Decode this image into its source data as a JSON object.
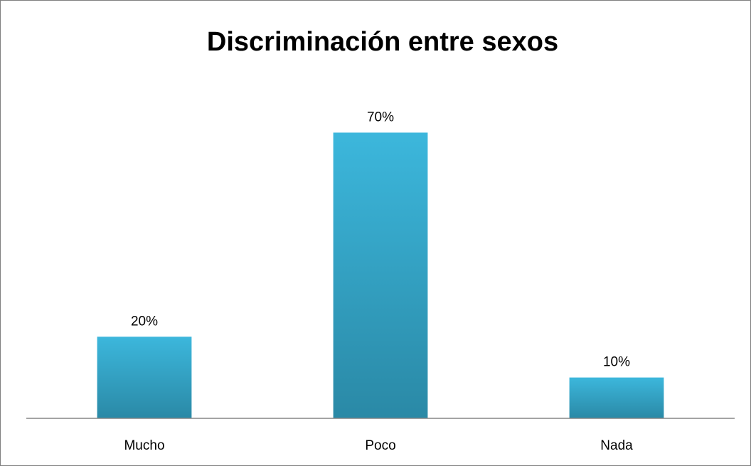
{
  "chart_data": {
    "type": "bar",
    "title": "Discriminación entre sexos",
    "categories": [
      "Mucho",
      "Poco",
      "Nada"
    ],
    "values": [
      20,
      70,
      10
    ],
    "value_labels": [
      "20%",
      "70%",
      "10%"
    ],
    "unit": "%",
    "ylim": [
      0,
      80
    ],
    "grid": false,
    "legend": "none",
    "colors": {
      "bar_top": "#3cb7dc",
      "bar_bottom": "#2a89a6",
      "axis": "#868686",
      "border": "#7f7f7f"
    }
  }
}
